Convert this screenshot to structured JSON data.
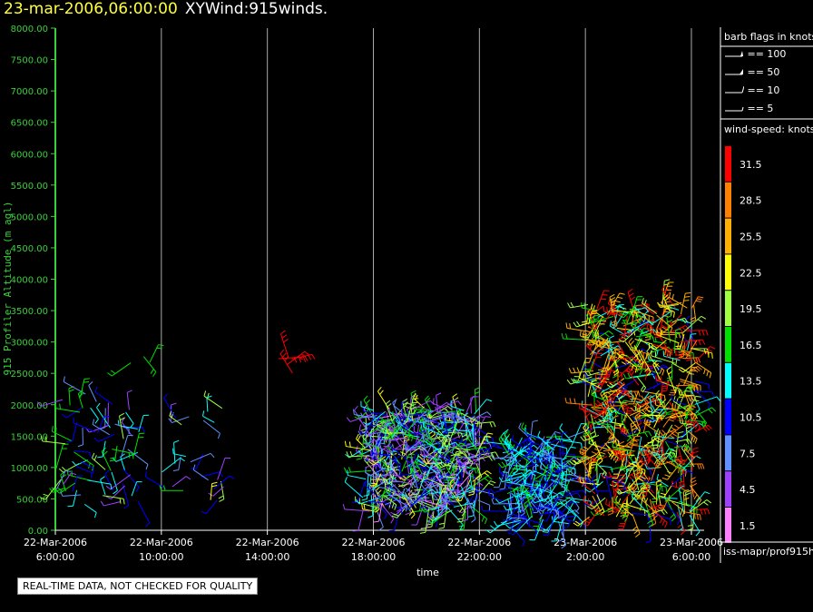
{
  "header": {
    "timestamp": "23-mar-2006,06:00:00",
    "name": "XYWind:915winds."
  },
  "notice": "REAL-TIME DATA, NOT CHECKED FOR QUALITY",
  "source_label": "iss-mapr/prof915h",
  "legend": {
    "barb_title": "barb flags in knots",
    "barbs": [
      "== 100",
      "== 50",
      "== 10",
      "== 5"
    ],
    "speed_title": "wind-speed: knots",
    "speed_bins": [
      {
        "label": "31.5",
        "color": "#ff0000"
      },
      {
        "label": "28.5",
        "color": "#ff8000"
      },
      {
        "label": "25.5",
        "color": "#ffb000"
      },
      {
        "label": "22.5",
        "color": "#ffff00"
      },
      {
        "label": "19.5",
        "color": "#a0ff40"
      },
      {
        "label": "16.5",
        "color": "#00e000"
      },
      {
        "label": "13.5",
        "color": "#00ffff"
      },
      {
        "label": "10.5",
        "color": "#0000ff"
      },
      {
        "label": "7.5",
        "color": "#6090ff"
      },
      {
        "label": "4.5",
        "color": "#a040ff"
      },
      {
        "label": "1.5",
        "color": "#ff80ff"
      }
    ]
  },
  "chart_data": {
    "type": "scatter",
    "ylabel": "915 Profiler Altitude (m agl)",
    "xlabel": "time",
    "ylim": [
      0,
      8000
    ],
    "yticks": [
      "0.00",
      "500.00",
      "1000.00",
      "1500.00",
      "2000.00",
      "2500.00",
      "3000.00",
      "3500.00",
      "4000.00",
      "4500.00",
      "5000.00",
      "5500.00",
      "6000.00",
      "6500.00",
      "7000.00",
      "7500.00",
      "8000.00"
    ],
    "xticks": [
      {
        "date": "22-Mar-2006",
        "time": "6:00:00"
      },
      {
        "date": "22-Mar-2006",
        "time": "10:00:00"
      },
      {
        "date": "22-Mar-2006",
        "time": "14:00:00"
      },
      {
        "date": "22-Mar-2006",
        "time": "18:00:00"
      },
      {
        "date": "22-Mar-2006",
        "time": "22:00:00"
      },
      {
        "date": "23-Mar-2006",
        "time": "2:00:00"
      },
      {
        "date": "23-Mar-2006",
        "time": "6:00:00"
      }
    ],
    "clusters": [
      {
        "t0": 0.0,
        "t1": 3.2,
        "h0": 400,
        "h1": 2200,
        "n": 70,
        "speeds": [
          4,
          7,
          10,
          13,
          16
        ]
      },
      {
        "t0": 2.5,
        "t1": 3.6,
        "h0": 2550,
        "h1": 2800,
        "n": 3,
        "speeds": [
          16
        ]
      },
      {
        "t0": 4.0,
        "t1": 6.5,
        "h0": 450,
        "h1": 2000,
        "n": 25,
        "speeds": [
          4,
          7,
          10,
          13,
          19
        ]
      },
      {
        "t0": 8.3,
        "t1": 9.0,
        "h0": 2500,
        "h1": 2850,
        "n": 5,
        "speeds": [
          31
        ]
      },
      {
        "t0": 11.6,
        "t1": 16.0,
        "h0": 300,
        "h1": 1950,
        "n": 520,
        "speeds": [
          2,
          4,
          7,
          10,
          13,
          16,
          19
        ]
      },
      {
        "t0": 17.0,
        "t1": 19.5,
        "h0": 100,
        "h1": 1500,
        "n": 240,
        "speeds": [
          7,
          10,
          13
        ]
      },
      {
        "t0": 20.0,
        "t1": 24.2,
        "h0": 200,
        "h1": 3650,
        "n": 520,
        "speeds": [
          10,
          13,
          16,
          19,
          22,
          25,
          28,
          31
        ]
      }
    ]
  }
}
